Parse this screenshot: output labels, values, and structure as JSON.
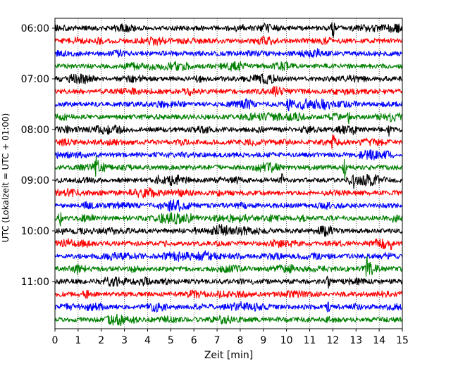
{
  "chart_data": {
    "type": "line",
    "xlabel": "Zeit  [min]",
    "ylabel": "UTC (Lokalzeit = UTC + 01:00)",
    "xlim": [
      0,
      15
    ],
    "x_ticks": [
      "0",
      "1",
      "2",
      "3",
      "4",
      "5",
      "6",
      "7",
      "8",
      "9",
      "10",
      "11",
      "12",
      "13",
      "14",
      "15"
    ],
    "y_tick_labels": [
      "06:00",
      "07:00",
      "08:00",
      "09:00",
      "10:00",
      "11:00"
    ],
    "vertical_grid": "dotted",
    "trace_interval_min": 15,
    "trace_count": 24,
    "first_trace_time": "06:00",
    "colors": [
      "#000000",
      "#ff0000",
      "#0000ff",
      "#008000"
    ],
    "events": [
      {
        "trace": 0,
        "x": 12.0,
        "amp": 2.6
      },
      {
        "trace": 6,
        "x": 10.1,
        "amp": 1.3
      },
      {
        "trace": 7,
        "x": 12.7,
        "amp": 1.4
      },
      {
        "trace": 8,
        "x": 12.9,
        "amp": 1.3
      },
      {
        "trace": 8,
        "x": 14.4,
        "amp": 1.4
      },
      {
        "trace": 9,
        "x": 12.0,
        "amp": 1.2
      },
      {
        "trace": 11,
        "x": 1.8,
        "amp": 2.5
      },
      {
        "trace": 11,
        "x": 12.5,
        "amp": 2.7
      },
      {
        "trace": 12,
        "x": 4.4,
        "amp": 1.5
      },
      {
        "trace": 12,
        "x": 9.8,
        "amp": 1.5
      },
      {
        "trace": 12,
        "x": 12.9,
        "amp": 1.4
      },
      {
        "trace": 15,
        "x": 0.2,
        "amp": 2.2
      },
      {
        "trace": 17,
        "x": 14.5,
        "amp": 1.4
      },
      {
        "trace": 19,
        "x": 10.2,
        "amp": 1.3
      },
      {
        "trace": 19,
        "x": 13.5,
        "amp": 2.3
      },
      {
        "trace": 20,
        "x": 11.8,
        "amp": 1.2
      },
      {
        "trace": 22,
        "x": 11.8,
        "amp": 1.2
      }
    ]
  }
}
